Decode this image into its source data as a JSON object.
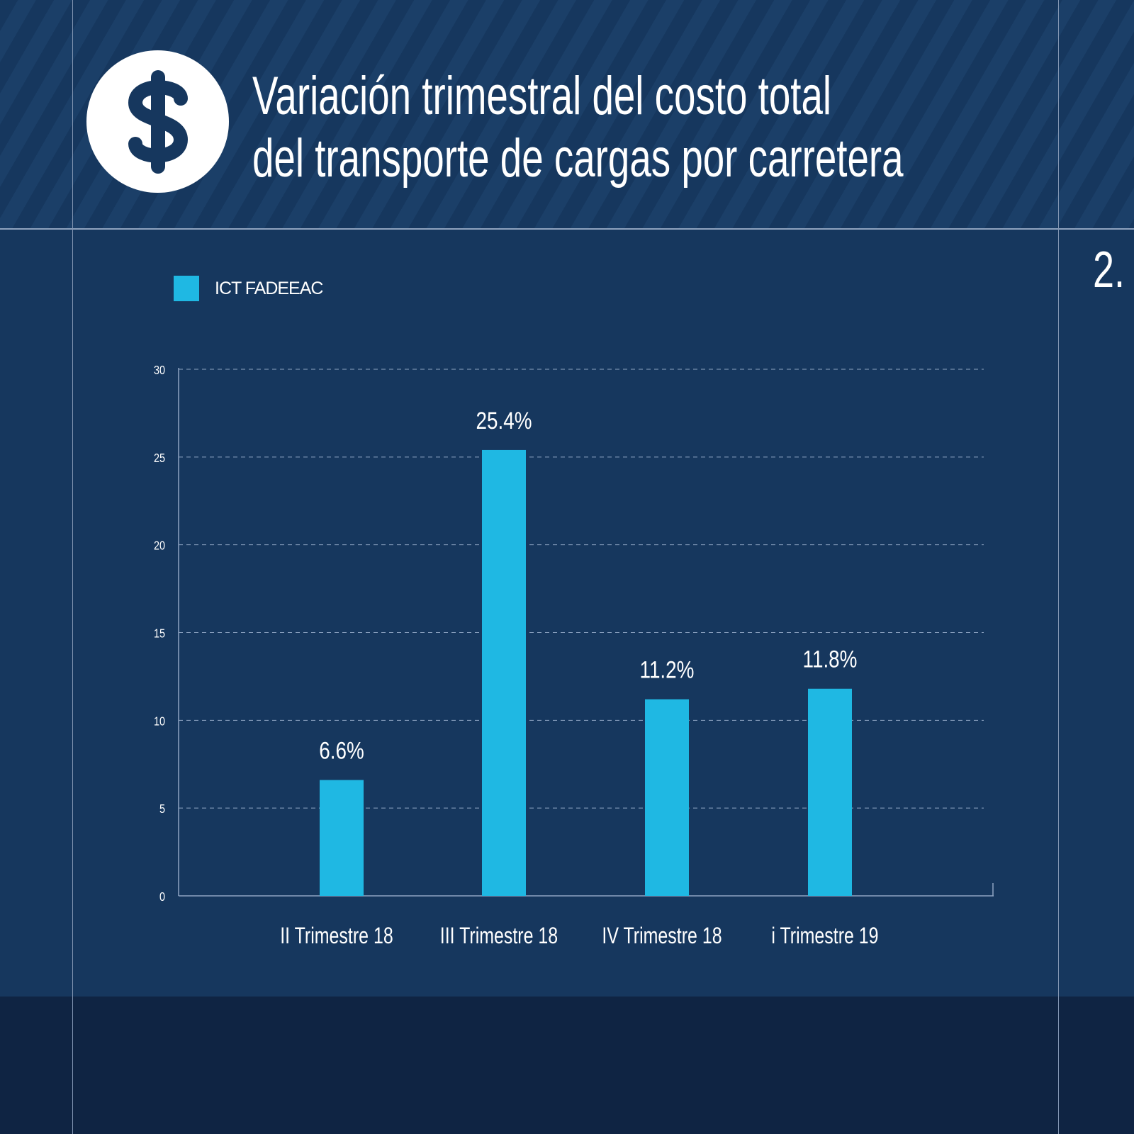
{
  "title_lines": [
    "Variación trimestral del costo total",
    "del transporte de cargas por carretera"
  ],
  "page_number": "2.",
  "icon": "dollar-sign-icon",
  "colors": {
    "bar": "#1fb8e3",
    "background": "#16375e",
    "footer": "#0f2443"
  },
  "chart_data": {
    "type": "bar",
    "categories": [
      "II Trimestre 18",
      "III Trimestre 18",
      "IV Trimestre 18",
      "i Trimestre 19"
    ],
    "series": [
      {
        "name": "ICT FADEEAC",
        "values": [
          6.6,
          25.4,
          11.2,
          11.8
        ]
      }
    ],
    "data_labels": [
      "6.6%",
      "25.4%",
      "11.2%",
      "11.8%"
    ],
    "yticks": [
      "0",
      "5",
      "10",
      "15",
      "20",
      "25",
      "30"
    ],
    "ylim": [
      0,
      30
    ],
    "grid": true,
    "legend_position": "top-left"
  }
}
